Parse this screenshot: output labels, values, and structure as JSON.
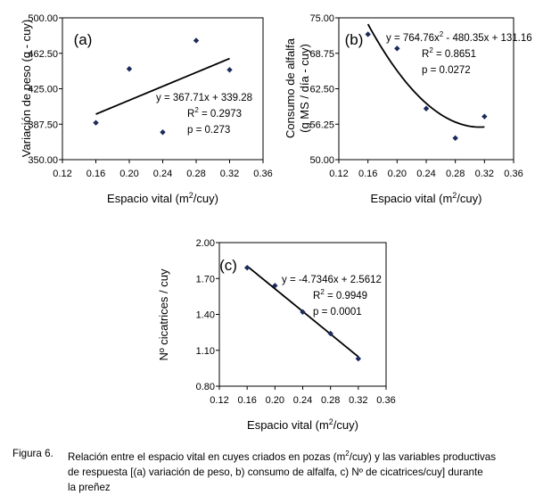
{
  "chart_data": [
    {
      "id": "a",
      "type": "scatter",
      "panel_label": "(a)",
      "xlabel": "Espacio vital (m",
      "xlabel_sup": "2",
      "xlabel_end": "/cuy)",
      "ylabel": [
        "Variación de peso (g - cuy)"
      ],
      "xlim": [
        0.12,
        0.36
      ],
      "ylim": [
        350.0,
        500.0
      ],
      "x_ticks": [
        0.12,
        0.16,
        0.2,
        0.24,
        0.28,
        0.32,
        0.36
      ],
      "x_tick_labels": [
        "0.12",
        "0.16",
        "0.20",
        "0.24",
        "0.28",
        "0.32",
        "0.36"
      ],
      "y_ticks": [
        350,
        387.5,
        425,
        462.5,
        500
      ],
      "y_tick_labels": [
        "350.00",
        "387.50",
        "425.00",
        "462.50",
        "500.00"
      ],
      "points": [
        {
          "x": 0.16,
          "y": 389
        },
        {
          "x": 0.2,
          "y": 446
        },
        {
          "x": 0.24,
          "y": 379
        },
        {
          "x": 0.28,
          "y": 476
        },
        {
          "x": 0.32,
          "y": 445
        }
      ],
      "trend": {
        "kind": "linear",
        "a": 367.71,
        "b": 339.28,
        "x_range": [
          0.16,
          0.32
        ]
      },
      "annotations": [
        "y = 367.71x + 339.28",
        "R",
        "2",
        " = 0.2973",
        "p = 0.273"
      ],
      "grid": false
    },
    {
      "id": "b",
      "type": "scatter",
      "panel_label": "(b)",
      "xlabel": "Espacio vital (m",
      "xlabel_sup": "2",
      "xlabel_end": "/cuy)",
      "ylabel": [
        "Consumo de alfalfa",
        "(g MS / día - cuy)"
      ],
      "xlim": [
        0.12,
        0.36
      ],
      "ylim": [
        50.0,
        75.0
      ],
      "x_ticks": [
        0.12,
        0.16,
        0.2,
        0.24,
        0.28,
        0.32,
        0.36
      ],
      "x_tick_labels": [
        "0.12",
        "0.16",
        "0.20",
        "0.24",
        "0.28",
        "0.32",
        "0.36"
      ],
      "y_ticks": [
        50,
        56.25,
        62.5,
        68.75,
        75
      ],
      "y_tick_labels": [
        "50.00",
        "56.25",
        "62.50",
        "68.75",
        "75.00"
      ],
      "points": [
        {
          "x": 0.16,
          "y": 72.1
        },
        {
          "x": 0.2,
          "y": 69.6
        },
        {
          "x": 0.24,
          "y": 59.0
        },
        {
          "x": 0.28,
          "y": 53.8
        },
        {
          "x": 0.32,
          "y": 57.6
        }
      ],
      "trend": {
        "kind": "quadratic",
        "a": 764.76,
        "b": -480.35,
        "c": 131.16,
        "x_range": [
          0.16,
          0.32
        ]
      },
      "annotations": [
        "y = 764.76x",
        "2",
        " - 480.35x + 131.16",
        "R",
        "2",
        " = 0.8651",
        "p = 0.0272"
      ],
      "grid": false
    },
    {
      "id": "c",
      "type": "scatter",
      "panel_label": "(c)",
      "xlabel": "Espacio vital (m",
      "xlabel_sup": "2",
      "xlabel_end": "/cuy)",
      "ylabel": [
        "Nº cicatrices / cuy"
      ],
      "xlim": [
        0.12,
        0.36
      ],
      "ylim": [
        0.8,
        2.0
      ],
      "x_ticks": [
        0.12,
        0.16,
        0.2,
        0.24,
        0.28,
        0.32,
        0.36
      ],
      "x_tick_labels": [
        "0.12",
        "0.16",
        "0.20",
        "0.24",
        "0.28",
        "0.32",
        "0.36"
      ],
      "y_ticks": [
        0.8,
        1.1,
        1.4,
        1.7,
        2.0
      ],
      "y_tick_labels": [
        "0.80",
        "1.10",
        "1.40",
        "1.70",
        "2.00"
      ],
      "points": [
        {
          "x": 0.16,
          "y": 1.79
        },
        {
          "x": 0.2,
          "y": 1.64
        },
        {
          "x": 0.24,
          "y": 1.42
        },
        {
          "x": 0.28,
          "y": 1.24
        },
        {
          "x": 0.32,
          "y": 1.03
        }
      ],
      "trend": {
        "kind": "linear",
        "a": -4.7346,
        "b": 2.5612,
        "x_range": [
          0.16,
          0.32
        ]
      },
      "annotations": [
        "y = -4.7346x + 2.5612",
        "R",
        "2",
        " = 0.9949",
        "p = 0.0001"
      ],
      "grid": false
    }
  ],
  "caption": {
    "figure_number": "Figura 6.",
    "line1_a": "Relación entre el espacio vital en cuyes criados en pozas (m",
    "line1_sup": "2",
    "line1_b": "/cuy) y las variables productivas",
    "line2": "de respuesta [(a) variación de peso, b) consumo de alfalfa, c) Nº de cicatrices/cuy] durante",
    "line3": "la preñez"
  }
}
